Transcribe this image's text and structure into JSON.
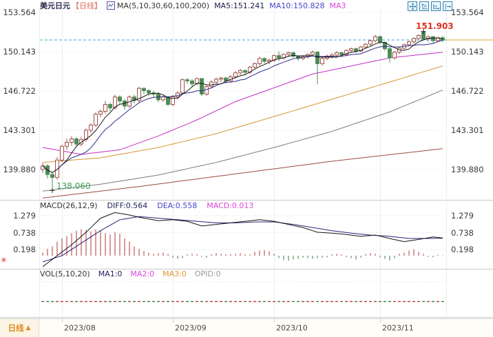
{
  "header": {
    "symbol": "美元日元",
    "period_tag": "【日线】",
    "ma_settings": "MA(5,10,30,60,100,200)",
    "ma5": "MA5:151.241",
    "ma10": "MA10:150.828",
    "ma30_truncated": "MA3"
  },
  "toolbar": {
    "icons": [
      "pan-crosshair",
      "scale-y-axis",
      "scale-x-axis",
      "pan-right"
    ]
  },
  "macd_panel": {
    "title": "MACD(26,12,9)",
    "diff": "DIFF:0.564",
    "dea": "DEA:0.558",
    "macd": "MACD:0.013"
  },
  "vol_panel": {
    "title": "VOL(5,10,20)",
    "ma1": "MA1:0",
    "ma2": "MA2:0",
    "ma3": "MA3:0",
    "opid": "OPID:0"
  },
  "bottom_bar": {
    "period": "日线",
    "triangle": "▲"
  },
  "colors": {
    "up": "#a0504b",
    "down": "#4e8b57",
    "ma5": "#141414",
    "ma10": "#2c2c86",
    "ma30": "#c52cc5",
    "ma60": "#d6922f",
    "ma100": "#7a7a7a",
    "ma200": "#9b4a42",
    "diff": "#141414",
    "dea": "#23237e",
    "hist_pos": "#b03a3a",
    "hist_neg": "#3d7a46",
    "price_line": "#35a3cf",
    "price_line_axis": "#e2a23e",
    "high_label": "#e03020",
    "low_label": "#3f9e52",
    "grid": "#d8d8d8",
    "icon_teal": "#2d7fae",
    "period_orange": "#dd8a1c"
  },
  "chart_data": {
    "type": "candlestick",
    "title": "美元日元 日线 (USD/JPY daily with MA overlays, MACD, VOL)",
    "x_ticks": [
      {
        "i": 4,
        "label": "2023/08"
      },
      {
        "i": 27,
        "label": "2023/09"
      },
      {
        "i": 48,
        "label": "2023/10"
      },
      {
        "i": 70,
        "label": "2023/11"
      }
    ],
    "main": {
      "y_tick_labels": [
        "153.564",
        "150.143",
        "146.722",
        "143.301",
        "139.880"
      ],
      "last_price_line": 151.16,
      "high_marker": {
        "i": 79,
        "price": 151.903,
        "label": "151.903"
      },
      "low_marker": {
        "i": 2,
        "price": 138.06,
        "label": "138.060"
      },
      "candles": [
        [
          139.9,
          140.45,
          139.6,
          140.2
        ],
        [
          140.2,
          140.35,
          139.1,
          139.45
        ],
        [
          139.45,
          139.6,
          138.06,
          139.2
        ],
        [
          139.2,
          140.95,
          139.0,
          140.7
        ],
        [
          140.7,
          142.05,
          140.55,
          141.9
        ],
        [
          141.9,
          142.55,
          141.6,
          142.25
        ],
        [
          142.25,
          142.8,
          141.95,
          142.55
        ],
        [
          142.55,
          142.7,
          141.85,
          142.1
        ],
        [
          142.1,
          142.7,
          141.9,
          142.5
        ],
        [
          142.5,
          143.45,
          142.3,
          143.3
        ],
        [
          143.3,
          143.9,
          143.05,
          143.75
        ],
        [
          143.75,
          144.85,
          143.6,
          144.7
        ],
        [
          144.7,
          145.1,
          144.45,
          144.95
        ],
        [
          144.95,
          145.85,
          144.75,
          145.55
        ],
        [
          145.55,
          145.7,
          144.95,
          145.25
        ],
        [
          145.25,
          146.4,
          145.1,
          146.2
        ],
        [
          146.2,
          146.35,
          145.6,
          145.85
        ],
        [
          145.85,
          146.0,
          145.1,
          145.4
        ],
        [
          145.4,
          146.35,
          145.25,
          146.2
        ],
        [
          146.2,
          146.4,
          145.65,
          145.9
        ],
        [
          145.9,
          147.1,
          145.75,
          146.95
        ],
        [
          146.95,
          147.05,
          146.45,
          146.75
        ],
        [
          146.75,
          146.9,
          146.3,
          146.55
        ],
        [
          146.55,
          146.75,
          146.15,
          146.45
        ],
        [
          146.45,
          146.6,
          145.75,
          145.95
        ],
        [
          145.95,
          146.4,
          145.8,
          146.2
        ],
        [
          146.2,
          146.3,
          145.4,
          145.55
        ],
        [
          145.55,
          146.35,
          145.4,
          146.2
        ],
        [
          146.2,
          146.7,
          146.0,
          146.55
        ],
        [
          146.55,
          147.8,
          146.4,
          147.7
        ],
        [
          147.7,
          147.85,
          147.35,
          147.6
        ],
        [
          147.6,
          147.75,
          147.1,
          147.35
        ],
        [
          147.35,
          147.9,
          147.2,
          147.8
        ],
        [
          147.8,
          147.85,
          146.3,
          146.45
        ],
        [
          146.45,
          147.25,
          146.3,
          147.1
        ],
        [
          147.1,
          147.65,
          146.95,
          147.5
        ],
        [
          147.5,
          147.9,
          147.35,
          147.75
        ],
        [
          147.75,
          147.95,
          147.5,
          147.85
        ],
        [
          147.85,
          147.95,
          147.4,
          147.6
        ],
        [
          147.6,
          148.1,
          147.45,
          147.95
        ],
        [
          147.95,
          148.45,
          147.8,
          148.3
        ],
        [
          148.3,
          148.65,
          148.1,
          148.5
        ],
        [
          148.5,
          148.6,
          148.15,
          148.35
        ],
        [
          148.35,
          148.9,
          148.2,
          148.8
        ],
        [
          148.8,
          149.2,
          148.65,
          149.1
        ],
        [
          149.1,
          149.7,
          148.95,
          149.55
        ],
        [
          149.55,
          149.65,
          149.1,
          149.3
        ],
        [
          149.3,
          149.55,
          149.05,
          149.4
        ],
        [
          149.4,
          149.9,
          149.25,
          149.8
        ],
        [
          149.8,
          150.15,
          149.35,
          149.6
        ],
        [
          149.6,
          150.0,
          149.45,
          149.9
        ],
        [
          149.9,
          150.15,
          149.7,
          150.05
        ],
        [
          150.05,
          150.15,
          149.6,
          149.75
        ],
        [
          149.75,
          149.85,
          149.35,
          149.55
        ],
        [
          149.55,
          149.85,
          149.4,
          149.7
        ],
        [
          149.7,
          150.0,
          149.55,
          149.9
        ],
        [
          149.9,
          150.25,
          149.75,
          150.1
        ],
        [
          150.1,
          150.2,
          147.3,
          149.1
        ],
        [
          149.1,
          149.7,
          148.95,
          149.55
        ],
        [
          149.55,
          149.9,
          149.4,
          149.75
        ],
        [
          149.75,
          150.0,
          149.55,
          149.85
        ],
        [
          149.85,
          150.2,
          149.7,
          150.05
        ],
        [
          150.05,
          150.15,
          149.65,
          149.9
        ],
        [
          149.9,
          150.35,
          149.75,
          150.25
        ],
        [
          150.25,
          150.5,
          150.05,
          150.4
        ],
        [
          150.4,
          150.5,
          150.0,
          150.2
        ],
        [
          150.2,
          150.65,
          150.1,
          150.55
        ],
        [
          150.55,
          150.9,
          150.4,
          150.8
        ],
        [
          150.8,
          151.2,
          150.65,
          151.1
        ],
        [
          151.1,
          151.6,
          150.95,
          151.45
        ],
        [
          151.45,
          151.55,
          150.8,
          150.95
        ],
        [
          150.95,
          151.05,
          150.25,
          150.4
        ],
        [
          150.4,
          150.5,
          149.2,
          149.6
        ],
        [
          149.6,
          150.2,
          149.45,
          150.1
        ],
        [
          150.1,
          150.55,
          149.95,
          150.45
        ],
        [
          150.45,
          150.85,
          150.3,
          150.75
        ],
        [
          150.75,
          151.1,
          150.6,
          151.0
        ],
        [
          151.0,
          151.4,
          150.85,
          151.3
        ],
        [
          151.3,
          151.65,
          151.15,
          151.55
        ],
        [
          151.85,
          151.903,
          151.1,
          151.25
        ],
        [
          151.25,
          151.55,
          151.0,
          151.45
        ],
        [
          151.45,
          151.5,
          150.9,
          151.1
        ],
        [
          151.1,
          151.45,
          150.95,
          151.35
        ],
        [
          151.35,
          151.5,
          151.0,
          151.16
        ]
      ],
      "ma_overlays": {
        "ma30": [
          [
            0,
            141.8
          ],
          [
            8,
            141.2
          ],
          [
            16,
            141.6
          ],
          [
            24,
            142.8
          ],
          [
            32,
            144.2
          ],
          [
            40,
            145.8
          ],
          [
            48,
            147.0
          ],
          [
            56,
            148.2
          ],
          [
            64,
            148.9
          ],
          [
            72,
            149.6
          ],
          [
            83,
            150.1
          ]
        ],
        "ma60": [
          [
            0,
            140.5
          ],
          [
            12,
            140.9
          ],
          [
            24,
            141.8
          ],
          [
            36,
            143.0
          ],
          [
            48,
            144.5
          ],
          [
            60,
            146.0
          ],
          [
            72,
            147.5
          ],
          [
            83,
            148.9
          ]
        ],
        "ma100": [
          [
            0,
            138.0
          ],
          [
            12,
            138.6
          ],
          [
            24,
            139.4
          ],
          [
            36,
            140.5
          ],
          [
            48,
            141.8
          ],
          [
            60,
            143.2
          ],
          [
            72,
            144.9
          ],
          [
            83,
            146.8
          ]
        ],
        "ma200": [
          [
            0,
            137.4
          ],
          [
            20,
            138.4
          ],
          [
            40,
            139.5
          ],
          [
            60,
            140.6
          ],
          [
            83,
            141.7
          ]
        ]
      }
    },
    "macd": {
      "y_tick_labels": [
        "1.279",
        "0.738",
        "0.198"
      ],
      "diff": [
        [
          0,
          -0.35
        ],
        [
          3,
          0.0
        ],
        [
          6,
          0.35
        ],
        [
          9,
          0.75
        ],
        [
          12,
          1.2
        ],
        [
          15,
          1.38
        ],
        [
          18,
          1.3
        ],
        [
          21,
          1.2
        ],
        [
          24,
          1.12
        ],
        [
          27,
          1.15
        ],
        [
          30,
          1.1
        ],
        [
          33,
          0.95
        ],
        [
          36,
          1.0
        ],
        [
          39,
          1.05
        ],
        [
          42,
          1.1
        ],
        [
          45,
          1.15
        ],
        [
          48,
          1.1
        ],
        [
          51,
          1.0
        ],
        [
          54,
          0.9
        ],
        [
          57,
          0.75
        ],
        [
          60,
          0.72
        ],
        [
          63,
          0.68
        ],
        [
          66,
          0.62
        ],
        [
          69,
          0.66
        ],
        [
          72,
          0.55
        ],
        [
          75,
          0.45
        ],
        [
          78,
          0.52
        ],
        [
          81,
          0.6
        ],
        [
          83,
          0.564
        ]
      ],
      "dea": [
        [
          0,
          -0.2
        ],
        [
          4,
          0.0
        ],
        [
          8,
          0.4
        ],
        [
          12,
          0.8
        ],
        [
          16,
          1.15
        ],
        [
          20,
          1.25
        ],
        [
          24,
          1.2
        ],
        [
          28,
          1.15
        ],
        [
          32,
          1.1
        ],
        [
          36,
          1.05
        ],
        [
          40,
          1.05
        ],
        [
          44,
          1.08
        ],
        [
          48,
          1.08
        ],
        [
          52,
          1.0
        ],
        [
          56,
          0.9
        ],
        [
          60,
          0.8
        ],
        [
          64,
          0.72
        ],
        [
          68,
          0.66
        ],
        [
          72,
          0.62
        ],
        [
          76,
          0.55
        ],
        [
          80,
          0.55
        ],
        [
          83,
          0.558
        ]
      ],
      "hist": [
        0.1,
        0.22,
        0.3,
        0.45,
        0.55,
        0.62,
        0.72,
        0.8,
        0.85,
        0.82,
        0.78,
        0.84,
        0.8,
        0.72,
        0.68,
        0.75,
        0.7,
        0.55,
        0.45,
        0.3,
        0.22,
        0.15,
        0.1,
        0.06,
        0.08,
        0.1,
        0.06,
        -0.06,
        -0.1,
        -0.08,
        0.04,
        0.06,
        0.05,
        -0.04,
        -0.06,
        0.05,
        0.08,
        0.06,
        0.04,
        0.05,
        0.06,
        0.08,
        0.05,
        0.04,
        0.12,
        0.16,
        0.18,
        0.14,
        0.06,
        -0.08,
        -0.14,
        -0.16,
        -0.12,
        -0.1,
        -0.06,
        -0.08,
        -0.1,
        -0.08,
        -0.06,
        -0.05,
        0.05,
        0.06,
        0.04,
        -0.05,
        -0.08,
        -0.12,
        -0.06,
        0.05,
        0.08,
        0.06,
        -0.05,
        -0.1,
        -0.15,
        -0.08,
        0.06,
        0.1,
        0.16,
        0.2,
        0.12,
        0.06,
        -0.04,
        -0.05,
        0.03,
        0.013
      ]
    },
    "volume": {
      "constant": 0
    }
  }
}
